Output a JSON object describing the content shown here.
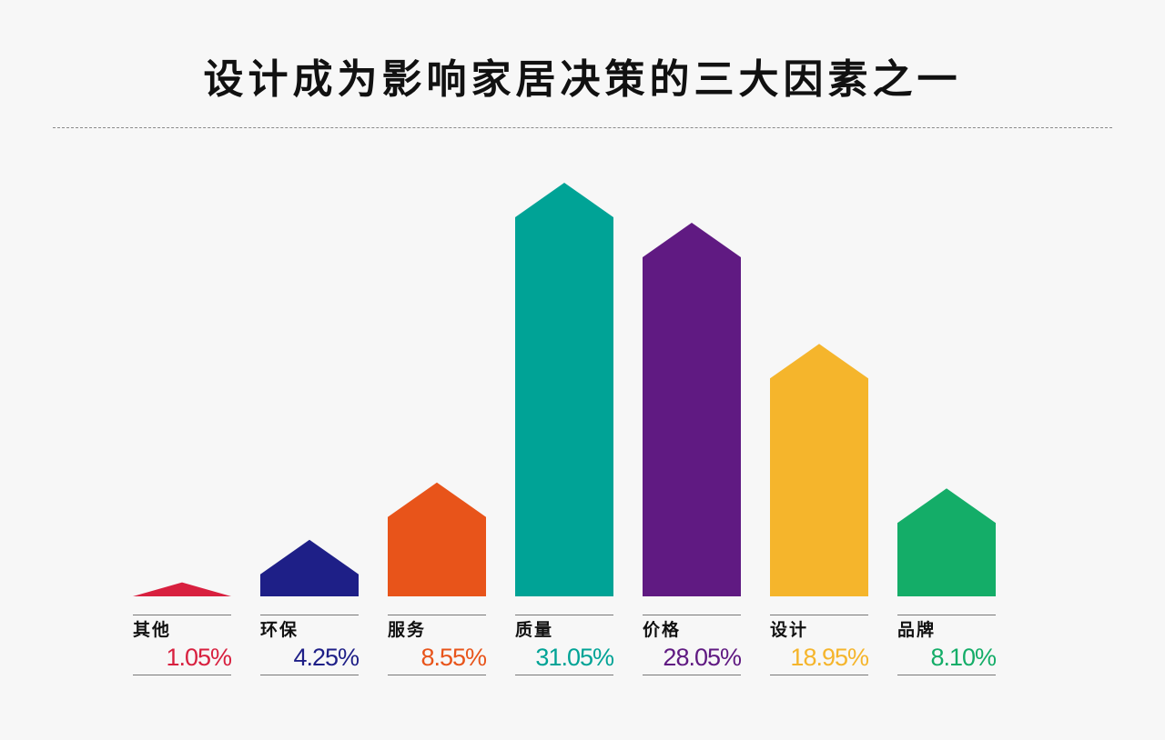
{
  "title": "设计成为影响家居决策的三大因素之一",
  "chart_data": {
    "type": "bar",
    "title": "设计成为影响家居决策的三大因素之一",
    "categories": [
      "其他",
      "环保",
      "服务",
      "质量",
      "价格",
      "设计",
      "品牌"
    ],
    "values": [
      1.05,
      4.25,
      8.55,
      31.05,
      28.05,
      18.95,
      8.1
    ],
    "value_labels": [
      "1.05%",
      "4.25%",
      "8.55%",
      "31.05%",
      "28.05%",
      "18.95%",
      "8.10%"
    ],
    "colors": [
      "#d8203f",
      "#1e1f87",
      "#e8541a",
      "#00a396",
      "#601a82",
      "#f5b52c",
      "#14ad68"
    ],
    "unit": "%",
    "xlabel": "",
    "ylabel": "",
    "grid": false,
    "legend": "none"
  }
}
